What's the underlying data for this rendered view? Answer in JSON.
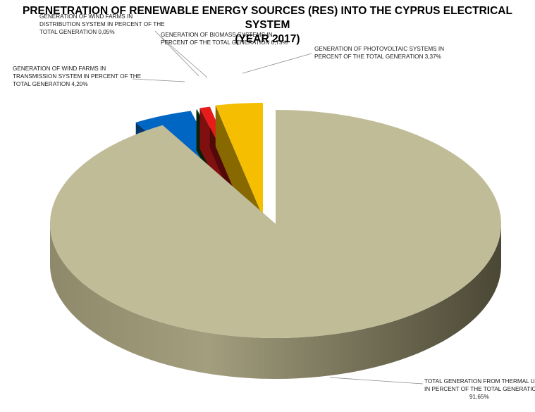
{
  "title_lines": [
    "PRENETRATION OF RENEWABLE ENERGY SOURCES (RES) INTO THE CYPRUS ELECTRICAL SYSTEM",
    "(YEAR 2017)"
  ],
  "chart_data": {
    "type": "pie",
    "title": "PRENETRATION OF RENEWABLE ENERGY SOURCES (RES) INTO THE CYPRUS ELECTRICAL SYSTEM (YEAR 2017)",
    "three_d": true,
    "exploded": true,
    "slices": [
      {
        "key": "thermal",
        "value": 91.65,
        "color": "#c1bc98",
        "label_lines": [
          "TOTAL GENERATION FROM THERMAL UN",
          "IN PERCENT OF THE TOTAL GENERATIO",
          "91,65%"
        ]
      },
      {
        "key": "wind_transmission",
        "value": 4.2,
        "color": "#0066c4",
        "label_lines": [
          "GENERATION OF WIND FARMS IN",
          "TRANSMISSION SYSTEM IN PERCENT OF THE",
          "TOTAL GENERATION 4,20%"
        ]
      },
      {
        "key": "wind_distribution",
        "value": 0.05,
        "color": "#1d5a1d",
        "label_lines": [
          "GENERATION OF WIND FARMS IN",
          "DISTRIBUTION SYSTEM IN PERCENT OF THE",
          "TOTAL GENERATION 0,05%"
        ]
      },
      {
        "key": "biomass",
        "value": 0.73,
        "color": "#e81b1b",
        "label_lines": [
          "GENERATION OF BIOMASS SYSTEMS  IN",
          "PERCENT OF THE TOTAL GENERATION 0,73%"
        ]
      },
      {
        "key": "photovoltaic",
        "value": 3.37,
        "color": "#f5be00",
        "label_lines": [
          "GENERATION OF PHOTOVOLTAIC SYSTEMS  IN",
          "PERCENT OF THE TOTAL GENERATION 3,37%"
        ]
      }
    ]
  }
}
